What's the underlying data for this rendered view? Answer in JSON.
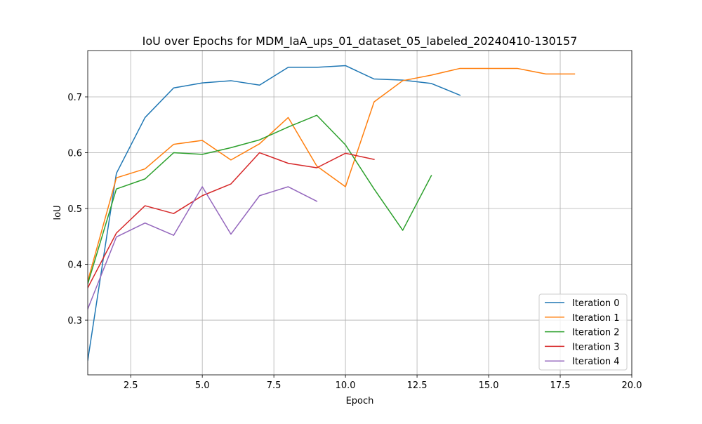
{
  "chart_data": {
    "type": "line",
    "title": "IoU over Epochs for MDM_IaA_ups_01_dataset_05_labeled_20240410-130157",
    "xlabel": "Epoch",
    "ylabel": "IoU",
    "xlim": [
      1,
      20
    ],
    "ylim": [
      0.202,
      0.783
    ],
    "xticks": [
      2.5,
      5.0,
      7.5,
      10.0,
      12.5,
      15.0,
      17.5,
      20.0
    ],
    "xtick_labels": [
      "2.5",
      "5.0",
      "7.5",
      "10.0",
      "12.5",
      "15.0",
      "17.5",
      "20.0"
    ],
    "yticks": [
      0.3,
      0.4,
      0.5,
      0.6,
      0.7
    ],
    "ytick_labels": [
      "0.3",
      "0.4",
      "0.5",
      "0.6",
      "0.7"
    ],
    "grid": true,
    "legend_position": "lower-right",
    "series": [
      {
        "name": "Iteration 0",
        "color": "#1f77b4",
        "x": [
          1,
          2,
          3,
          4,
          5,
          6,
          7,
          8,
          9,
          10,
          11,
          12,
          13,
          14
        ],
        "y": [
          0.228,
          0.563,
          0.663,
          0.716,
          0.725,
          0.729,
          0.721,
          0.753,
          0.753,
          0.756,
          0.732,
          0.73,
          0.724,
          0.703
        ]
      },
      {
        "name": "Iteration 1",
        "color": "#ff7f0e",
        "x": [
          1,
          2,
          3,
          4,
          5,
          6,
          7,
          8,
          9,
          10,
          11,
          12,
          13,
          14,
          15,
          16,
          17,
          18
        ],
        "y": [
          0.37,
          0.555,
          0.571,
          0.615,
          0.622,
          0.587,
          0.616,
          0.663,
          0.576,
          0.539,
          0.691,
          0.729,
          0.739,
          0.751,
          0.751,
          0.751,
          0.741,
          0.741
        ]
      },
      {
        "name": "Iteration 2",
        "color": "#2ca02c",
        "x": [
          1,
          2,
          3,
          4,
          5,
          6,
          7,
          8,
          9,
          10,
          11,
          12,
          13
        ],
        "y": [
          0.365,
          0.535,
          0.553,
          0.6,
          0.597,
          0.609,
          0.623,
          0.646,
          0.667,
          0.614,
          0.535,
          0.461,
          0.559
        ]
      },
      {
        "name": "Iteration 3",
        "color": "#d62728",
        "x": [
          1,
          2,
          3,
          4,
          5,
          6,
          7,
          8,
          9,
          10,
          11
        ],
        "y": [
          0.358,
          0.456,
          0.505,
          0.491,
          0.523,
          0.544,
          0.6,
          0.581,
          0.573,
          0.599,
          0.588
        ]
      },
      {
        "name": "Iteration 4",
        "color": "#9467bd",
        "x": [
          1,
          2,
          3,
          4,
          5,
          6,
          7,
          8,
          9
        ],
        "y": [
          0.32,
          0.449,
          0.474,
          0.452,
          0.539,
          0.454,
          0.523,
          0.539,
          0.513
        ]
      }
    ]
  }
}
